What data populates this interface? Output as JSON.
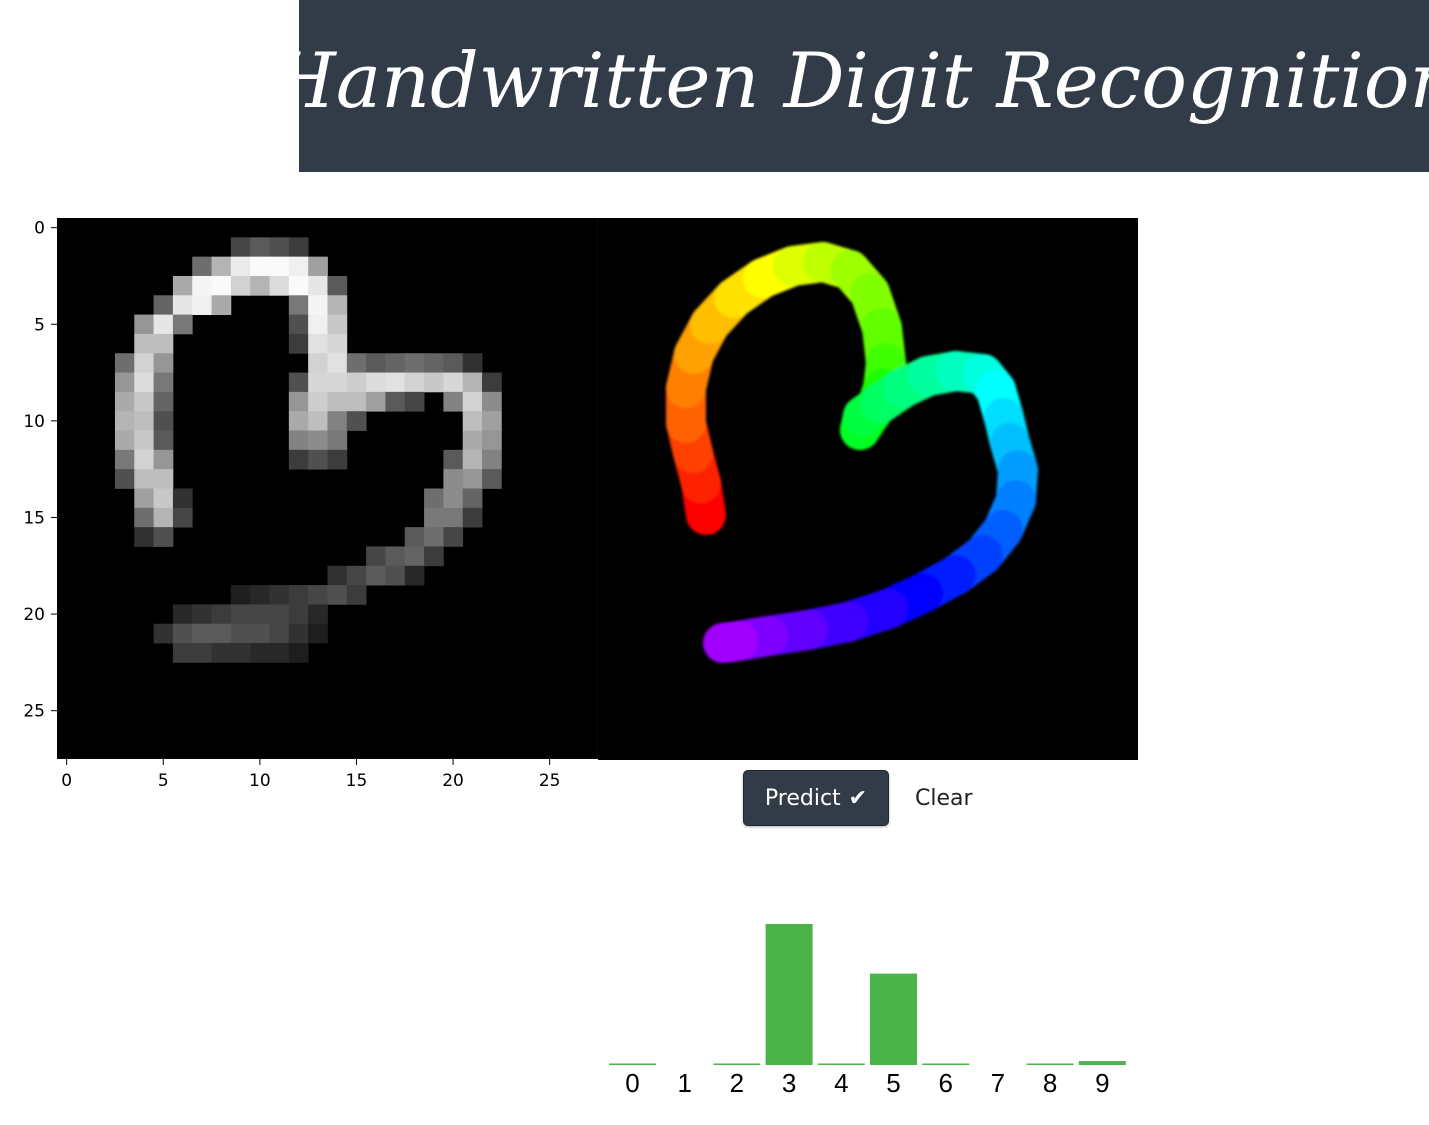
{
  "header": {
    "title": "Handwritten Digit Recognition"
  },
  "controls": {
    "predict_label": "Predict",
    "predict_icon": "check-icon",
    "clear_label": "Clear"
  },
  "colors": {
    "header_bg": "#323c49",
    "bar": "#4ab34a",
    "pixel_bg": "#000000"
  },
  "image_plot": {
    "x_ticks": [
      "0",
      "5",
      "10",
      "15",
      "20",
      "25"
    ],
    "y_ticks": [
      "0",
      "5",
      "10",
      "15",
      "20",
      "25"
    ],
    "size": 28,
    "pixels": [
      [
        9,
        1,
        70
      ],
      [
        10,
        1,
        90
      ],
      [
        11,
        1,
        80
      ],
      [
        12,
        1,
        60
      ],
      [
        7,
        2,
        110
      ],
      [
        8,
        2,
        180
      ],
      [
        9,
        2,
        235
      ],
      [
        10,
        2,
        250
      ],
      [
        11,
        2,
        250
      ],
      [
        12,
        2,
        240
      ],
      [
        13,
        2,
        160
      ],
      [
        6,
        3,
        170
      ],
      [
        7,
        3,
        245
      ],
      [
        8,
        3,
        250
      ],
      [
        9,
        3,
        210
      ],
      [
        10,
        3,
        180
      ],
      [
        11,
        3,
        220
      ],
      [
        12,
        3,
        250
      ],
      [
        13,
        3,
        230
      ],
      [
        14,
        3,
        90
      ],
      [
        5,
        4,
        100
      ],
      [
        6,
        4,
        230
      ],
      [
        7,
        4,
        240
      ],
      [
        8,
        4,
        170
      ],
      [
        12,
        4,
        120
      ],
      [
        13,
        4,
        245
      ],
      [
        14,
        4,
        180
      ],
      [
        4,
        5,
        150
      ],
      [
        5,
        5,
        230
      ],
      [
        6,
        5,
        120
      ],
      [
        12,
        5,
        80
      ],
      [
        13,
        5,
        240
      ],
      [
        14,
        5,
        200
      ],
      [
        4,
        6,
        190
      ],
      [
        5,
        6,
        190
      ],
      [
        12,
        6,
        60
      ],
      [
        13,
        6,
        225
      ],
      [
        14,
        6,
        215
      ],
      [
        3,
        7,
        110
      ],
      [
        4,
        7,
        210
      ],
      [
        5,
        7,
        150
      ],
      [
        13,
        7,
        210
      ],
      [
        14,
        7,
        225
      ],
      [
        15,
        7,
        110
      ],
      [
        16,
        7,
        90
      ],
      [
        17,
        7,
        100
      ],
      [
        18,
        7,
        110
      ],
      [
        19,
        7,
        100
      ],
      [
        20,
        7,
        90
      ],
      [
        21,
        7,
        50
      ],
      [
        3,
        8,
        150
      ],
      [
        4,
        8,
        220
      ],
      [
        5,
        8,
        120
      ],
      [
        12,
        8,
        80
      ],
      [
        13,
        8,
        215
      ],
      [
        14,
        8,
        215
      ],
      [
        15,
        8,
        205
      ],
      [
        16,
        8,
        220
      ],
      [
        17,
        8,
        225
      ],
      [
        18,
        8,
        210
      ],
      [
        19,
        8,
        200
      ],
      [
        20,
        8,
        215
      ],
      [
        21,
        8,
        180
      ],
      [
        22,
        8,
        60
      ],
      [
        3,
        9,
        170
      ],
      [
        4,
        9,
        200
      ],
      [
        5,
        9,
        100
      ],
      [
        12,
        9,
        150
      ],
      [
        13,
        9,
        205
      ],
      [
        14,
        9,
        190
      ],
      [
        15,
        9,
        190
      ],
      [
        16,
        9,
        160
      ],
      [
        17,
        9,
        90
      ],
      [
        18,
        9,
        70
      ],
      [
        20,
        9,
        130
      ],
      [
        21,
        9,
        210
      ],
      [
        22,
        9,
        140
      ],
      [
        3,
        10,
        180
      ],
      [
        4,
        10,
        190
      ],
      [
        5,
        10,
        80
      ],
      [
        12,
        10,
        170
      ],
      [
        13,
        10,
        190
      ],
      [
        14,
        10,
        130
      ],
      [
        15,
        10,
        80
      ],
      [
        21,
        10,
        190
      ],
      [
        22,
        10,
        160
      ],
      [
        3,
        11,
        170
      ],
      [
        4,
        11,
        200
      ],
      [
        5,
        11,
        90
      ],
      [
        12,
        11,
        130
      ],
      [
        13,
        11,
        140
      ],
      [
        14,
        11,
        120
      ],
      [
        21,
        11,
        170
      ],
      [
        22,
        11,
        150
      ],
      [
        3,
        12,
        120
      ],
      [
        4,
        12,
        210
      ],
      [
        5,
        12,
        150
      ],
      [
        12,
        12,
        60
      ],
      [
        13,
        12,
        80
      ],
      [
        14,
        12,
        60
      ],
      [
        20,
        12,
        90
      ],
      [
        21,
        12,
        180
      ],
      [
        22,
        12,
        130
      ],
      [
        3,
        13,
        80
      ],
      [
        4,
        13,
        190
      ],
      [
        5,
        13,
        190
      ],
      [
        20,
        13,
        140
      ],
      [
        21,
        13,
        150
      ],
      [
        22,
        13,
        90
      ],
      [
        4,
        14,
        160
      ],
      [
        5,
        14,
        200
      ],
      [
        6,
        14,
        50
      ],
      [
        19,
        14,
        110
      ],
      [
        20,
        14,
        140
      ],
      [
        21,
        14,
        100
      ],
      [
        4,
        15,
        110
      ],
      [
        5,
        15,
        180
      ],
      [
        6,
        15,
        70
      ],
      [
        19,
        15,
        120
      ],
      [
        20,
        15,
        120
      ],
      [
        21,
        15,
        60
      ],
      [
        4,
        16,
        50
      ],
      [
        5,
        16,
        80
      ],
      [
        18,
        16,
        90
      ],
      [
        19,
        16,
        110
      ],
      [
        20,
        16,
        70
      ],
      [
        16,
        17,
        70
      ],
      [
        17,
        17,
        90
      ],
      [
        18,
        17,
        100
      ],
      [
        19,
        17,
        60
      ],
      [
        14,
        18,
        50
      ],
      [
        15,
        18,
        70
      ],
      [
        16,
        18,
        90
      ],
      [
        17,
        18,
        80
      ],
      [
        18,
        18,
        40
      ],
      [
        9,
        19,
        30
      ],
      [
        10,
        19,
        40
      ],
      [
        11,
        19,
        50
      ],
      [
        12,
        19,
        60
      ],
      [
        13,
        19,
        70
      ],
      [
        14,
        19,
        80
      ],
      [
        15,
        19,
        60
      ],
      [
        6,
        20,
        40
      ],
      [
        7,
        20,
        50
      ],
      [
        8,
        20,
        60
      ],
      [
        9,
        20,
        70
      ],
      [
        10,
        20,
        70
      ],
      [
        11,
        20,
        70
      ],
      [
        12,
        20,
        60
      ],
      [
        13,
        20,
        40
      ],
      [
        5,
        21,
        50
      ],
      [
        6,
        21,
        80
      ],
      [
        7,
        21,
        90
      ],
      [
        8,
        21,
        90
      ],
      [
        9,
        21,
        80
      ],
      [
        10,
        21,
        80
      ],
      [
        11,
        21,
        70
      ],
      [
        12,
        21,
        50
      ],
      [
        13,
        21,
        30
      ],
      [
        6,
        22,
        60
      ],
      [
        7,
        22,
        60
      ],
      [
        8,
        22,
        50
      ],
      [
        9,
        22,
        50
      ],
      [
        10,
        22,
        40
      ],
      [
        11,
        22,
        40
      ],
      [
        12,
        22,
        30
      ]
    ]
  },
  "chart_data": {
    "type": "bar",
    "categories": [
      "0",
      "1",
      "2",
      "3",
      "4",
      "5",
      "6",
      "7",
      "8",
      "9"
    ],
    "values": [
      0.005,
      0,
      0.005,
      0.54,
      0.005,
      0.35,
      0.005,
      0,
      0.005,
      0.015
    ],
    "ylim": [
      0,
      0.54
    ]
  }
}
